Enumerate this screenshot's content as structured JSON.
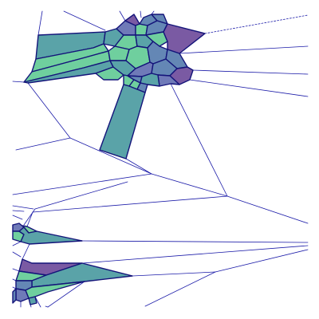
{
  "diagram": {
    "type": "voronoi-mesh",
    "background": "#ffffff",
    "colors": {
      "edge": "#1a1aa8",
      "cell_outline": "#14147a",
      "mint": "#6fcf9e",
      "green": "#79cf9d",
      "teal": "#5aa3a8",
      "steel": "#6487b5",
      "slate": "#6f7ab8",
      "purple": "#7a5aa3"
    },
    "labels": []
  }
}
